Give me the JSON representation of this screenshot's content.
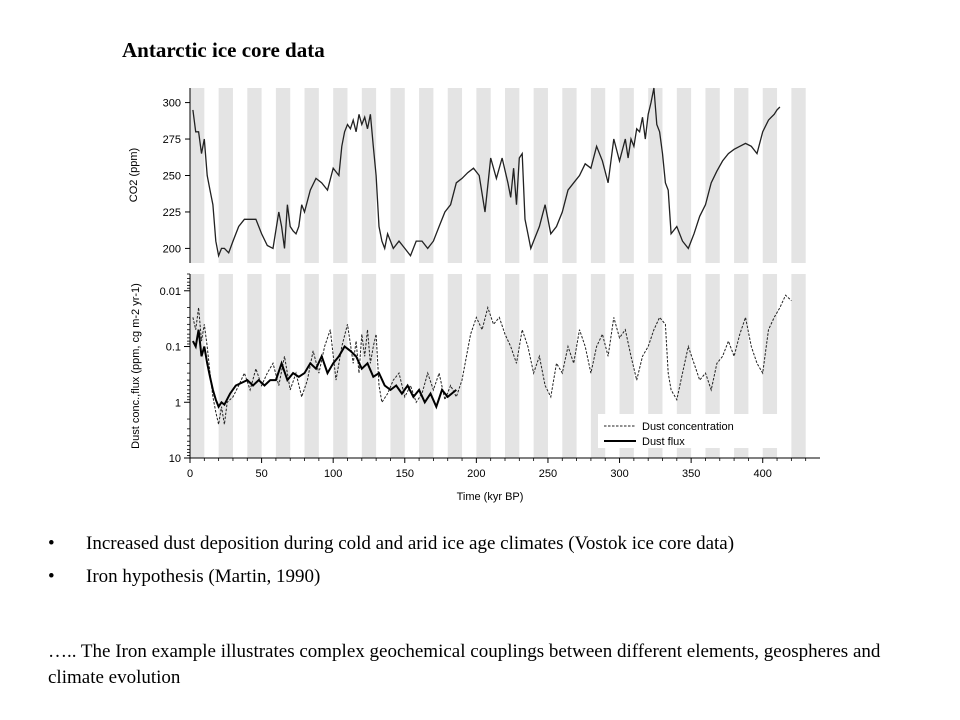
{
  "slide": {
    "title": "Antarctic ice core data",
    "bullets": [
      "Increased dust deposition during cold and arid ice age climates (Vostok ice core data)",
      "Iron hypothesis (Martin, 1990)"
    ],
    "bullet_symbol": "•",
    "footer": "….. The Iron example illustrates complex geochemical couplings between different elements, geospheres and climate evolution"
  },
  "chart_data": [
    {
      "type": "line",
      "ylabel": "CO2 (ppm)",
      "ylim": [
        190,
        310
      ],
      "yticks": [
        200,
        225,
        250,
        275,
        300
      ],
      "xlim": [
        0,
        440
      ],
      "grid": "vertical stripes",
      "series": [
        {
          "style": "solid",
          "x": [
            2,
            4,
            6,
            8,
            10,
            12,
            14,
            16,
            18,
            20,
            22,
            24,
            27,
            30,
            34,
            38,
            42,
            46,
            50,
            54,
            58,
            62,
            64,
            66,
            68,
            70,
            72,
            74,
            76,
            78,
            80,
            84,
            88,
            92,
            96,
            100,
            104,
            106,
            108,
            110,
            112,
            114,
            116,
            118,
            120,
            122,
            124,
            126,
            128,
            130,
            132,
            134,
            136,
            138,
            140,
            142,
            146,
            150,
            154,
            158,
            162,
            166,
            170,
            174,
            178,
            182,
            186,
            190,
            194,
            198,
            202,
            206,
            210,
            214,
            218,
            222,
            224,
            226,
            228,
            230,
            232,
            234,
            236,
            238,
            240,
            244,
            248,
            252,
            256,
            260,
            264,
            268,
            272,
            276,
            280,
            284,
            288,
            292,
            296,
            300,
            304,
            306,
            308,
            310,
            312,
            314,
            316,
            318,
            320,
            322,
            324,
            326,
            328,
            330,
            332,
            334,
            336,
            340,
            344,
            348,
            352,
            356,
            360,
            364,
            368,
            372,
            376,
            380,
            384,
            388,
            392,
            396,
            400,
            404,
            406,
            408,
            410,
            412
          ],
          "values": [
            295,
            280,
            280,
            265,
            275,
            250,
            240,
            230,
            205,
            195,
            200,
            200,
            197,
            205,
            215,
            220,
            220,
            220,
            210,
            202,
            200,
            225,
            215,
            200,
            230,
            215,
            212,
            210,
            215,
            230,
            225,
            240,
            248,
            245,
            240,
            255,
            250,
            270,
            280,
            285,
            282,
            288,
            280,
            292,
            285,
            290,
            282,
            292,
            270,
            250,
            215,
            205,
            200,
            210,
            205,
            200,
            205,
            200,
            195,
            205,
            205,
            200,
            205,
            215,
            225,
            230,
            245,
            248,
            252,
            255,
            250,
            225,
            262,
            248,
            262,
            245,
            235,
            255,
            230,
            262,
            265,
            220,
            210,
            200,
            205,
            215,
            230,
            210,
            215,
            225,
            240,
            245,
            250,
            258,
            255,
            270,
            260,
            245,
            275,
            260,
            275,
            262,
            275,
            270,
            282,
            280,
            290,
            275,
            292,
            300,
            310,
            285,
            280,
            265,
            245,
            240,
            210,
            215,
            205,
            200,
            210,
            222,
            230,
            245,
            253,
            260,
            265,
            268,
            270,
            272,
            270,
            265,
            280,
            288,
            290,
            292,
            295,
            297
          ]
        }
      ]
    },
    {
      "type": "line",
      "xlabel": "Time (kyr BP)",
      "ylabel": "Dust conc.,flux (ppm, cg m-2 yr-1)",
      "yscale": "log reversed",
      "ylim": [
        0.005,
        10
      ],
      "yticks": [
        0.01,
        0.1,
        1,
        10
      ],
      "ytick_labels": [
        "0.01",
        "0.1",
        "1",
        "10"
      ],
      "xlim": [
        0,
        440
      ],
      "xticks": [
        0,
        50,
        100,
        150,
        200,
        250,
        300,
        350,
        400
      ],
      "grid": "vertical stripes",
      "legend": "bottom-right",
      "series": [
        {
          "name": "Dust concentration",
          "style": "dashed",
          "x": [
            2,
            4,
            6,
            8,
            10,
            12,
            14,
            16,
            18,
            20,
            22,
            24,
            26,
            30,
            34,
            38,
            42,
            46,
            50,
            54,
            58,
            62,
            66,
            70,
            74,
            78,
            82,
            86,
            90,
            94,
            98,
            102,
            106,
            110,
            114,
            116,
            118,
            120,
            122,
            124,
            126,
            128,
            130,
            132,
            134,
            138,
            142,
            146,
            150,
            154,
            158,
            162,
            166,
            170,
            174,
            178,
            182,
            186,
            190,
            196,
            200,
            204,
            208,
            212,
            216,
            220,
            224,
            228,
            232,
            236,
            240,
            244,
            248,
            252,
            256,
            260,
            264,
            268,
            272,
            276,
            280,
            284,
            288,
            292,
            296,
            300,
            304,
            308,
            312,
            316,
            320,
            324,
            328,
            332,
            334,
            336,
            340,
            344,
            348,
            352,
            356,
            360,
            364,
            368,
            372,
            376,
            380,
            384,
            388,
            392,
            396,
            400,
            404,
            408,
            412,
            416,
            420
          ],
          "values": [
            0.03,
            0.05,
            0.02,
            0.08,
            0.04,
            0.1,
            0.3,
            0.8,
            1.5,
            2.5,
            1.2,
            2.5,
            1.0,
            0.8,
            0.5,
            0.3,
            0.6,
            0.25,
            0.5,
            0.3,
            0.2,
            0.5,
            0.15,
            0.6,
            0.3,
            0.8,
            0.4,
            0.12,
            0.3,
            0.1,
            0.05,
            0.4,
            0.1,
            0.04,
            0.2,
            0.08,
            0.3,
            0.06,
            0.15,
            0.05,
            0.2,
            0.1,
            0.06,
            0.5,
            1.0,
            0.7,
            0.4,
            0.3,
            0.8,
            0.5,
            1.0,
            0.7,
            0.3,
            0.6,
            0.3,
            0.9,
            0.5,
            0.8,
            0.4,
            0.06,
            0.03,
            0.05,
            0.02,
            0.04,
            0.03,
            0.06,
            0.1,
            0.2,
            0.05,
            0.1,
            0.3,
            0.15,
            0.5,
            0.8,
            0.2,
            0.3,
            0.1,
            0.2,
            0.05,
            0.1,
            0.3,
            0.1,
            0.06,
            0.15,
            0.03,
            0.07,
            0.05,
            0.15,
            0.4,
            0.15,
            0.1,
            0.05,
            0.03,
            0.04,
            0.3,
            0.6,
            0.9,
            0.3,
            0.1,
            0.2,
            0.4,
            0.3,
            0.6,
            0.2,
            0.15,
            0.08,
            0.15,
            0.06,
            0.03,
            0.1,
            0.2,
            0.3,
            0.05,
            0.03,
            0.02,
            0.012,
            0.015
          ]
        },
        {
          "name": "Dust flux",
          "style": "solid",
          "x": [
            2,
            4,
            6,
            8,
            10,
            12,
            14,
            16,
            18,
            20,
            22,
            24,
            28,
            32,
            36,
            40,
            44,
            48,
            52,
            56,
            60,
            64,
            68,
            72,
            76,
            80,
            84,
            88,
            92,
            96,
            100,
            104,
            108,
            112,
            116,
            120,
            124,
            128,
            132,
            136,
            140,
            144,
            148,
            152,
            156,
            160,
            164,
            168,
            172,
            176,
            180,
            186
          ],
          "values": [
            0.08,
            0.1,
            0.05,
            0.15,
            0.1,
            0.2,
            0.35,
            0.6,
            0.9,
            1.2,
            1.0,
            1.1,
            0.7,
            0.5,
            0.45,
            0.4,
            0.5,
            0.4,
            0.5,
            0.4,
            0.4,
            0.2,
            0.4,
            0.3,
            0.35,
            0.3,
            0.2,
            0.25,
            0.15,
            0.3,
            0.2,
            0.15,
            0.1,
            0.12,
            0.15,
            0.25,
            0.2,
            0.35,
            0.3,
            0.5,
            0.6,
            0.5,
            0.7,
            0.5,
            0.8,
            0.6,
            1.0,
            0.7,
            1.2,
            0.6,
            0.8,
            0.6
          ]
        }
      ]
    }
  ]
}
